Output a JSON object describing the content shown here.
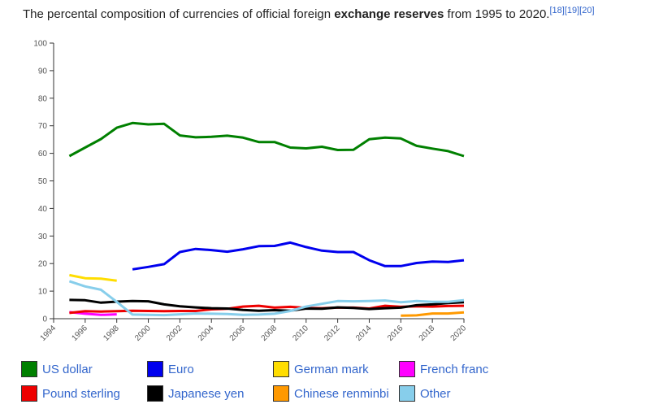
{
  "title": {
    "before": "The percental composition of currencies of official foreign ",
    "bold": "exchange reserves",
    "after": " from 1995 to 2020.",
    "refs": "[18][19][20]"
  },
  "chart_data": {
    "type": "line",
    "title": "The percental composition of currencies of official foreign exchange reserves from 1995 to 2020.",
    "xlabel": "",
    "ylabel": "",
    "xlim": [
      1994,
      2020
    ],
    "ylim": [
      0,
      100
    ],
    "x_ticks": [
      1994,
      1996,
      1998,
      2000,
      2002,
      2004,
      2006,
      2008,
      2010,
      2012,
      2014,
      2016,
      2018,
      2020
    ],
    "y_ticks": [
      0,
      10,
      20,
      30,
      40,
      50,
      60,
      70,
      80,
      90,
      100
    ],
    "grid": false,
    "legend_position": "bottom",
    "x": [
      1995,
      1996,
      1997,
      1998,
      1999,
      2000,
      2001,
      2002,
      2003,
      2004,
      2005,
      2006,
      2007,
      2008,
      2009,
      2010,
      2011,
      2012,
      2013,
      2014,
      2015,
      2016,
      2017,
      2018,
      2019,
      2020
    ],
    "series": [
      {
        "name": "US dollar",
        "color": "#008000",
        "values": [
          59,
          62.1,
          65.2,
          69.3,
          71,
          70.5,
          70.7,
          66.5,
          65.8,
          66,
          66.4,
          65.7,
          64.1,
          64.1,
          62.1,
          61.8,
          62.4,
          61.2,
          61.3,
          65.1,
          65.7,
          65.4,
          62.7,
          61.7,
          60.8,
          59
        ]
      },
      {
        "name": "Euro",
        "color": "#0000ee",
        "values": [
          null,
          null,
          null,
          null,
          17.9,
          18.8,
          19.8,
          24.2,
          25.3,
          24.9,
          24.3,
          25.2,
          26.3,
          26.4,
          27.6,
          26,
          24.7,
          24.2,
          24.2,
          21.2,
          19.1,
          19.1,
          20.2,
          20.7,
          20.6,
          21.2
        ]
      },
      {
        "name": "German mark",
        "color": "#ffdd00",
        "values": [
          15.8,
          14.7,
          14.5,
          13.8,
          null,
          null,
          null,
          null,
          null,
          null,
          null,
          null,
          null,
          null,
          null,
          null,
          null,
          null,
          null,
          null,
          null,
          null,
          null,
          null,
          null,
          null
        ]
      },
      {
        "name": "French franc",
        "color": "#ff00ff",
        "values": [
          2.4,
          1.8,
          1.4,
          1.6,
          null,
          null,
          null,
          null,
          null,
          null,
          null,
          null,
          null,
          null,
          null,
          null,
          null,
          null,
          null,
          null,
          null,
          null,
          null,
          null,
          null,
          null
        ]
      },
      {
        "name": "Pound sterling",
        "color": "#ee0000",
        "values": [
          2.1,
          2.7,
          2.6,
          2.7,
          2.9,
          2.8,
          2.7,
          2.8,
          2.8,
          3.4,
          3.6,
          4.4,
          4.7,
          4.0,
          4.3,
          3.9,
          3.8,
          4.0,
          4.0,
          3.7,
          4.7,
          4.3,
          4.5,
          4.4,
          4.6,
          4.7
        ]
      },
      {
        "name": "Japanese yen",
        "color": "#000000",
        "values": [
          6.8,
          6.7,
          5.8,
          6.2,
          6.4,
          6.3,
          5.2,
          4.5,
          4.1,
          3.8,
          3.7,
          3.2,
          2.9,
          3.1,
          2.9,
          3.7,
          3.6,
          4.1,
          3.9,
          3.5,
          3.8,
          4.0,
          4.9,
          5.2,
          5.7,
          6.0
        ]
      },
      {
        "name": "Chinese renminbi",
        "color": "#ff9900",
        "values": [
          null,
          null,
          null,
          null,
          null,
          null,
          null,
          null,
          null,
          null,
          null,
          null,
          null,
          null,
          null,
          null,
          null,
          null,
          null,
          null,
          null,
          1.1,
          1.2,
          1.9,
          1.9,
          2.3
        ]
      },
      {
        "name": "Other",
        "color": "#87ceeb",
        "values": [
          13.6,
          11.7,
          10.5,
          6.1,
          1.5,
          1.4,
          1.3,
          1.6,
          1.9,
          1.8,
          1.7,
          1.4,
          1.5,
          1.8,
          2.8,
          4.4,
          5.4,
          6.4,
          6.3,
          6.4,
          6.6,
          6.0,
          6.4,
          6.1,
          6.1,
          6.7
        ]
      }
    ]
  },
  "legend": [
    {
      "label": "US dollar",
      "color": "#008000"
    },
    {
      "label": "Euro",
      "color": "#0000ee"
    },
    {
      "label": "German mark",
      "color": "#ffdd00"
    },
    {
      "label": "French franc",
      "color": "#ff00ff"
    },
    {
      "label": "Pound sterling",
      "color": "#ee0000"
    },
    {
      "label": "Japanese yen",
      "color": "#000000"
    },
    {
      "label": "Chinese renminbi",
      "color": "#ff9900"
    },
    {
      "label": "Other",
      "color": "#87ceeb"
    }
  ]
}
